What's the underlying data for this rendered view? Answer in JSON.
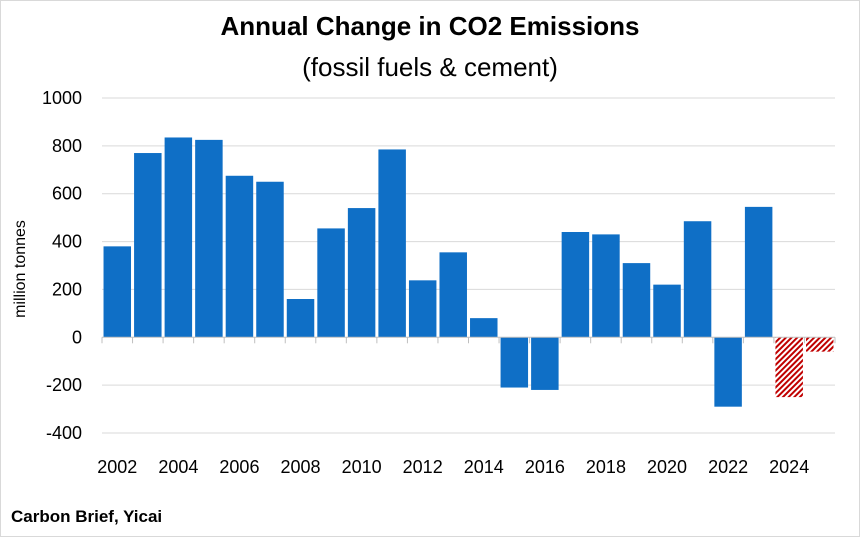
{
  "chart_data": {
    "type": "bar",
    "title": "Annual Change in CO2 Emissions",
    "subtitle": "(fossil fuels & cement)",
    "ylabel": "million tonnes",
    "xlabel": "",
    "source": "Carbon Brief, Yicai",
    "ylim": [
      -400,
      1000
    ],
    "yticks": [
      1000,
      800,
      600,
      400,
      200,
      0,
      -200,
      -400
    ],
    "xtick_labels": [
      "2002",
      "2004",
      "2006",
      "2008",
      "2010",
      "2012",
      "2014",
      "2016",
      "2018",
      "2020",
      "2022",
      "2024"
    ],
    "categories": [
      2002,
      2003,
      2004,
      2005,
      2006,
      2007,
      2008,
      2009,
      2010,
      2011,
      2012,
      2013,
      2014,
      2015,
      2016,
      2017,
      2018,
      2019,
      2020,
      2021,
      2022,
      2023,
      2024,
      2025
    ],
    "values": [
      380,
      770,
      835,
      825,
      675,
      650,
      160,
      455,
      540,
      785,
      238,
      355,
      80,
      -210,
      -220,
      440,
      430,
      310,
      220,
      485,
      -290,
      545,
      -250,
      -60
    ],
    "estimated_years": [
      2024,
      2025
    ],
    "grid": true,
    "legend": "none",
    "colors": {
      "actual": "#0f6fc6",
      "estimate": "#c00000",
      "grid": "#d9d9d9"
    }
  }
}
